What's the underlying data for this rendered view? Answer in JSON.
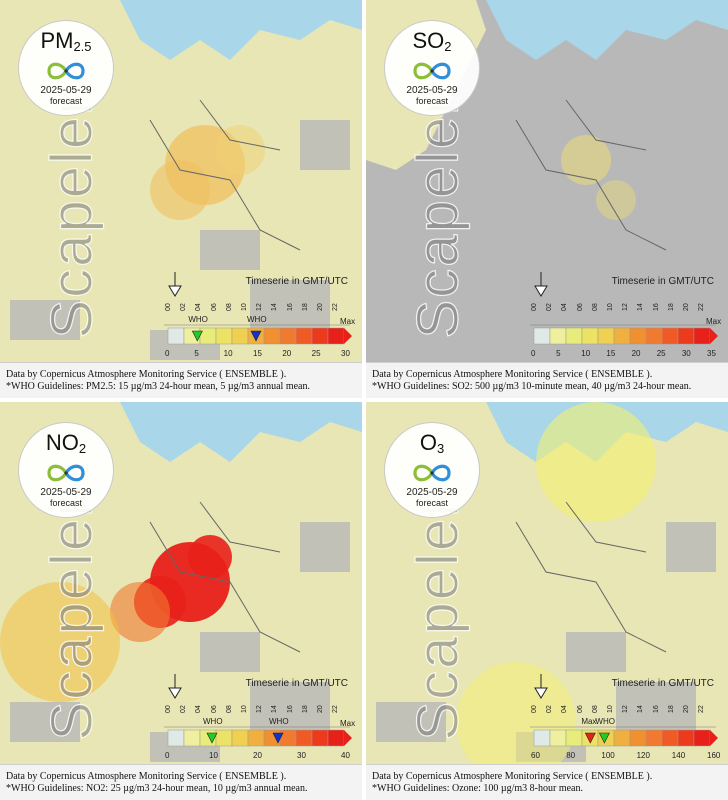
{
  "brand": "Scapeler",
  "timeserie_label": "Timeserie in GMT/UTC",
  "hours": [
    "00",
    "02",
    "04",
    "06",
    "08",
    "10",
    "12",
    "14",
    "16",
    "18",
    "20",
    "22"
  ],
  "colors": {
    "sea": "#a9d6e8",
    "land_nodata": "#b8b8b8",
    "land_light": "#e8e6b4",
    "low": "#eef0a0",
    "mid": "#f0d060",
    "high": "#f07a30",
    "max": "#e8201a"
  },
  "panels": [
    {
      "id": "pm25",
      "pollutant": "PM",
      "pollutant_sub": "2.5",
      "date": "2025-05-29",
      "mode": "forecast",
      "scale_ticks": [
        "0",
        "5",
        "10",
        "15",
        "20",
        "25",
        "30"
      ],
      "who_markers": [
        {
          "label": "WHO",
          "color": "#22cc22",
          "value": 5
        },
        {
          "label": "WHO",
          "color": "#1133cc",
          "value": 15
        }
      ],
      "max_label": "Max",
      "caption_source": "Data by Copernicus Atmosphere Monitoring Service ( ENSEMBLE ).",
      "caption_who": "*WHO Guidelines: PM2.5: 15 µg/m3 24-hour mean, 5 µg/m3 annual mean."
    },
    {
      "id": "so2",
      "pollutant": "SO",
      "pollutant_sub": "2",
      "date": "2025-05-29",
      "mode": "forecast",
      "scale_ticks": [
        "0",
        "5",
        "10",
        "15",
        "20",
        "25",
        "30",
        "35"
      ],
      "who_markers": [],
      "max_label": "Max",
      "caption_source": "Data by Copernicus Atmosphere Monitoring Service ( ENSEMBLE ).",
      "caption_who": "*WHO Guidelines: SO2: 500 µg/m3 10-minute mean, 40 µg/m3 24-hour mean."
    },
    {
      "id": "no2",
      "pollutant": "NO",
      "pollutant_sub": "2",
      "date": "2025-05-29",
      "mode": "forecast",
      "scale_ticks": [
        "0",
        "10",
        "20",
        "30",
        "40"
      ],
      "who_markers": [
        {
          "label": "WHO",
          "color": "#22cc22",
          "value": 10
        },
        {
          "label": "WHO",
          "color": "#1133cc",
          "value": 25
        }
      ],
      "max_label": "Max",
      "caption_source": "Data by Copernicus Atmosphere Monitoring Service ( ENSEMBLE ).",
      "caption_who": "*WHO Guidelines: NO2: 25 µg/m3 24-hour mean, 10 µg/m3 annual mean."
    },
    {
      "id": "o3",
      "pollutant": "O",
      "pollutant_sub": "3",
      "date": "2025-05-29",
      "mode": "forecast",
      "scale_ticks": [
        "60",
        "80",
        "100",
        "120",
        "140",
        "160"
      ],
      "who_markers": [
        {
          "label": "Max",
          "color": "#e8201a",
          "value": 92
        },
        {
          "label": "WHO",
          "color": "#22cc22",
          "value": 100
        }
      ],
      "max_label": "",
      "caption_source": "Data by Copernicus Atmosphere Monitoring Service ( ENSEMBLE ).",
      "caption_who": "*WHO Guidelines: Ozone: 100 µg/m3 8-hour mean."
    }
  ]
}
